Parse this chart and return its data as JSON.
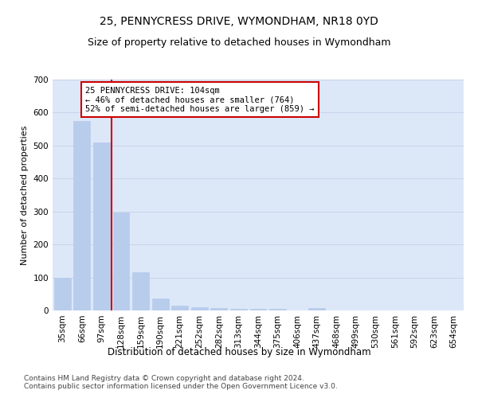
{
  "title": "25, PENNYCRESS DRIVE, WYMONDHAM, NR18 0YD",
  "subtitle": "Size of property relative to detached houses in Wymondham",
  "xlabel": "Distribution of detached houses by size in Wymondham",
  "ylabel": "Number of detached properties",
  "categories": [
    "35sqm",
    "66sqm",
    "97sqm",
    "128sqm",
    "159sqm",
    "190sqm",
    "221sqm",
    "252sqm",
    "282sqm",
    "313sqm",
    "344sqm",
    "375sqm",
    "406sqm",
    "437sqm",
    "468sqm",
    "499sqm",
    "530sqm",
    "561sqm",
    "592sqm",
    "623sqm",
    "654sqm"
  ],
  "values": [
    100,
    575,
    510,
    298,
    115,
    37,
    15,
    10,
    8,
    5,
    5,
    5,
    0,
    8,
    0,
    0,
    0,
    0,
    0,
    0,
    0
  ],
  "bar_color": "#b8ccec",
  "bar_edge_color": "#b8ccec",
  "red_line_color": "#cc0000",
  "annotation_text": "25 PENNYCRESS DRIVE: 104sqm\n← 46% of detached houses are smaller (764)\n52% of semi-detached houses are larger (859) →",
  "annotation_box_color": "white",
  "annotation_box_edge_color": "#cc0000",
  "ylim": [
    0,
    700
  ],
  "yticks": [
    0,
    100,
    200,
    300,
    400,
    500,
    600,
    700
  ],
  "grid_color": "#c8d4e8",
  "bg_color": "#dce8f8",
  "footnote": "Contains HM Land Registry data © Crown copyright and database right 2024.\nContains public sector information licensed under the Open Government Licence v3.0.",
  "title_fontsize": 10,
  "subtitle_fontsize": 9,
  "xlabel_fontsize": 8.5,
  "ylabel_fontsize": 8,
  "tick_fontsize": 7.5,
  "annot_fontsize": 7.5,
  "footnote_fontsize": 6.5
}
